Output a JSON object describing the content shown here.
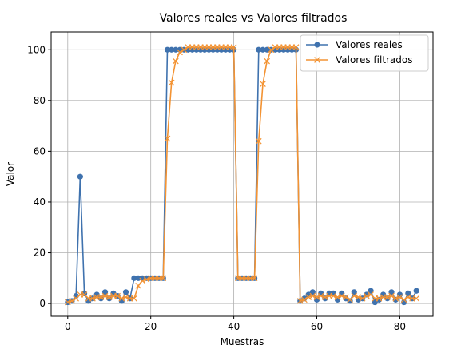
{
  "chart_data": {
    "type": "line",
    "title": "Valores reales vs Valores filtrados",
    "xlabel": "Muestras",
    "ylabel": "Valor",
    "xlim": [
      -4,
      88
    ],
    "ylim": [
      -5,
      107
    ],
    "xticks": [
      0,
      20,
      40,
      60,
      80
    ],
    "yticks": [
      0,
      20,
      40,
      60,
      80,
      100
    ],
    "grid": true,
    "legend_position": "top-right",
    "colors": {
      "reales": "#3f72ae",
      "filtrados": "#f39333"
    },
    "series": [
      {
        "name": "Valores reales",
        "marker": "circle",
        "x": [
          0,
          1,
          2,
          3,
          4,
          5,
          6,
          7,
          8,
          9,
          10,
          11,
          12,
          13,
          14,
          15,
          16,
          17,
          18,
          19,
          20,
          21,
          22,
          23,
          24,
          25,
          26,
          27,
          28,
          29,
          30,
          31,
          32,
          33,
          34,
          35,
          36,
          37,
          38,
          39,
          40,
          41,
          42,
          43,
          44,
          45,
          46,
          47,
          48,
          49,
          50,
          51,
          52,
          53,
          54,
          55,
          56,
          57,
          58,
          59,
          60,
          61,
          62,
          63,
          64,
          65,
          66,
          67,
          68,
          69,
          70,
          71,
          72,
          73,
          74,
          75,
          76,
          77,
          78,
          79,
          80,
          81,
          82,
          83,
          84
        ],
        "values": [
          0.5,
          1,
          3,
          50,
          4,
          1,
          2,
          3.5,
          2,
          4.5,
          2,
          4,
          3,
          1,
          4.5,
          2,
          10,
          10,
          10,
          10,
          10,
          10,
          10,
          10,
          100,
          100,
          100,
          100,
          100,
          100,
          100,
          100,
          100,
          100,
          100,
          100,
          100,
          100,
          100,
          100,
          100,
          10,
          10,
          10,
          10,
          10,
          100,
          100,
          100,
          100,
          100,
          100,
          100,
          100,
          100,
          100,
          1,
          2,
          3.5,
          4.5,
          1.5,
          4,
          2,
          4,
          4,
          1.5,
          4,
          2,
          1,
          4.5,
          1.5,
          2,
          3.5,
          5,
          0.5,
          1.5,
          3.5,
          2,
          4.5,
          1.5,
          3.5,
          0.5,
          4,
          2,
          5
        ]
      },
      {
        "name": "Valores filtrados",
        "marker": "x",
        "x": [
          0,
          1,
          2,
          3,
          4,
          5,
          6,
          7,
          8,
          9,
          10,
          11,
          12,
          13,
          14,
          15,
          16,
          17,
          18,
          19,
          20,
          21,
          22,
          23,
          24,
          25,
          26,
          27,
          28,
          29,
          30,
          31,
          32,
          33,
          34,
          35,
          36,
          37,
          38,
          39,
          40,
          41,
          42,
          43,
          44,
          45,
          46,
          47,
          48,
          49,
          50,
          51,
          52,
          53,
          54,
          55,
          56,
          57,
          58,
          59,
          60,
          61,
          62,
          63,
          64,
          65,
          66,
          67,
          68,
          69,
          70,
          71,
          72,
          73,
          74,
          75,
          76,
          77,
          78,
          79,
          80,
          81,
          82,
          83,
          84
        ],
        "values": [
          0.5,
          1,
          2,
          3.5,
          3.5,
          2,
          2,
          2.5,
          2.5,
          3,
          2.5,
          3,
          3,
          2,
          2.5,
          2,
          2,
          7,
          9,
          9.5,
          10,
          10,
          10,
          10,
          65,
          87,
          95.5,
          99,
          100,
          101,
          101,
          101,
          101,
          101,
          101,
          101,
          101,
          101,
          101,
          101,
          101,
          10,
          10,
          10,
          10,
          10,
          64,
          86.5,
          95.5,
          100,
          101,
          101,
          101,
          101,
          101,
          101,
          1,
          1.5,
          2.5,
          3,
          2.5,
          3,
          2.5,
          3,
          3,
          2.5,
          3,
          2.5,
          1.5,
          3,
          2.5,
          2,
          3,
          3.5,
          2,
          2,
          2.5,
          2.5,
          3,
          2,
          2.5,
          1.5,
          2.5,
          2,
          2
        ]
      }
    ]
  }
}
